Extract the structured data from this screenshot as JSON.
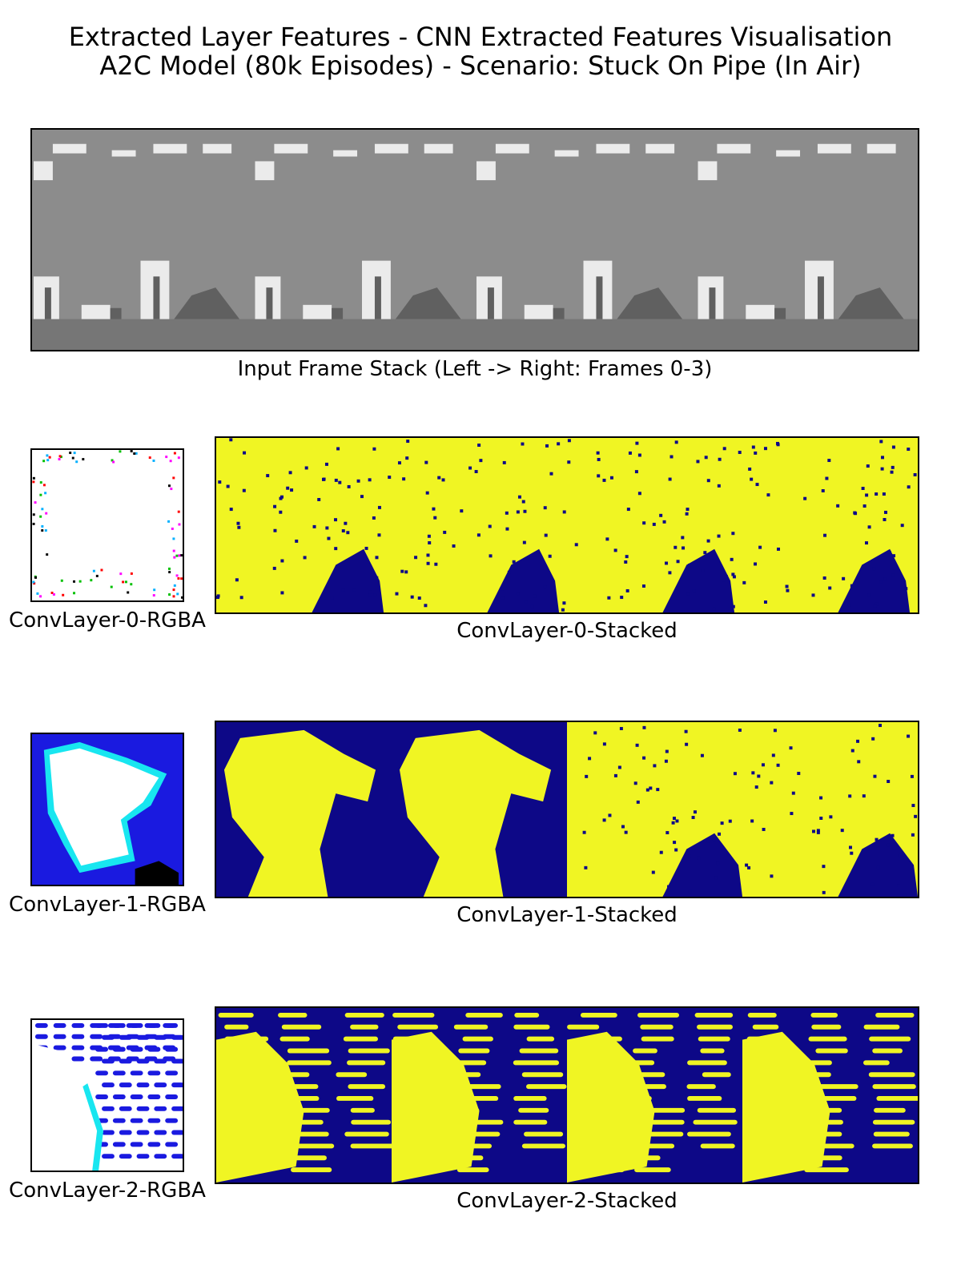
{
  "figure": {
    "title_line1": "Extracted Layer Features - CNN Extracted Features Visualisation",
    "title_line2": "A2C Model (80k Episodes) - Scenario: Stuck On Pipe (In Air)"
  },
  "input_stack": {
    "caption": "Input Frame Stack (Left -> Right: Frames 0-3)",
    "frame_count": 4
  },
  "layers": [
    {
      "rgba_caption": "ConvLayer-0-RGBA",
      "stacked_caption": "ConvLayer-0-Stacked"
    },
    {
      "rgba_caption": "ConvLayer-1-RGBA",
      "stacked_caption": "ConvLayer-1-Stacked"
    },
    {
      "rgba_caption": "ConvLayer-2-RGBA",
      "stacked_caption": "ConvLayer-2-Stacked"
    }
  ],
  "colors": {
    "feature_high": "#f0f523",
    "feature_low": "#0d0887",
    "frame_sky": "#8c8c8c",
    "frame_ground": "#767676",
    "frame_highlight": "#ebebeb",
    "frame_dark": "#606060",
    "rgba_blue": "#1a1ae0",
    "rgba_cyan": "#18e6f0"
  }
}
